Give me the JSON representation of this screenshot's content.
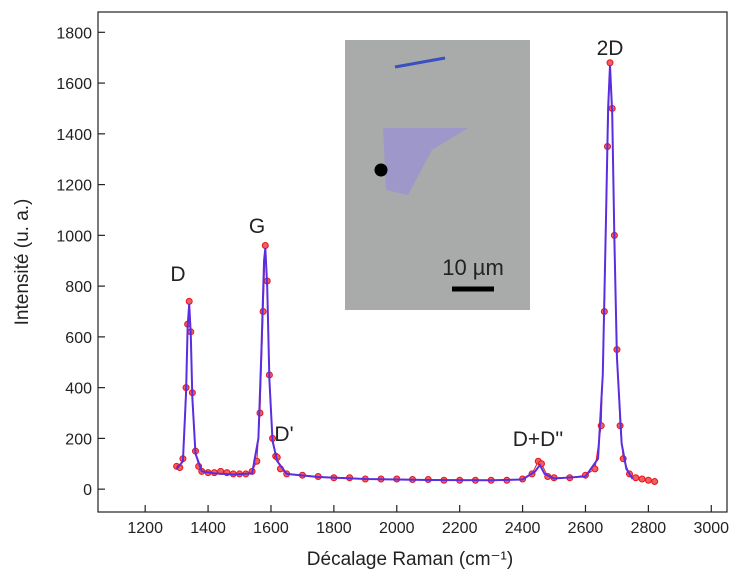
{
  "chart_data": {
    "type": "line",
    "xlabel": "Décalage  Raman (cm⁻¹)",
    "ylabel": "Intensité (u. a.)",
    "xlim": [
      1050,
      3050
    ],
    "xticks": [
      1200,
      1400,
      1600,
      1800,
      2000,
      2200,
      2400,
      2600,
      2800,
      3000
    ],
    "ylim": [
      -90,
      1880
    ],
    "yticks": [
      0,
      200,
      400,
      600,
      800,
      1000,
      1200,
      1400,
      1600,
      1800
    ],
    "annotations": [
      "D",
      "G",
      "D'",
      "D+D''",
      "2D"
    ],
    "inset_scale": "10 µm",
    "series": [
      {
        "color": "#e8141c",
        "style": "points",
        "x": [
          1300,
          1310,
          1320,
          1330,
          1335,
          1340,
          1345,
          1350,
          1360,
          1370,
          1380,
          1400,
          1420,
          1440,
          1460,
          1480,
          1500,
          1520,
          1540,
          1555,
          1565,
          1575,
          1582,
          1588,
          1595,
          1605,
          1615,
          1620,
          1630,
          1650,
          1700,
          1750,
          1800,
          1850,
          1900,
          1950,
          2000,
          2050,
          2100,
          2150,
          2200,
          2250,
          2300,
          2350,
          2400,
          2430,
          2450,
          2460,
          2480,
          2500,
          2550,
          2600,
          2630,
          2650,
          2660,
          2670,
          2678,
          2685,
          2692,
          2700,
          2710,
          2720,
          2740,
          2760,
          2780,
          2800,
          2820
        ],
        "values": [
          90,
          85,
          120,
          400,
          650,
          740,
          620,
          380,
          150,
          90,
          70,
          65,
          65,
          70,
          65,
          60,
          60,
          60,
          70,
          110,
          300,
          700,
          960,
          820,
          450,
          200,
          130,
          125,
          80,
          60,
          55,
          50,
          45,
          45,
          40,
          40,
          40,
          38,
          38,
          35,
          35,
          35,
          35,
          35,
          40,
          60,
          110,
          100,
          50,
          45,
          45,
          55,
          80,
          250,
          700,
          1350,
          1680,
          1500,
          1000,
          550,
          250,
          120,
          60,
          45,
          40,
          35,
          30
        ]
      },
      {
        "color": "#5a2ee0",
        "style": "line",
        "x": [
          1300,
          1320,
          1330,
          1335,
          1340,
          1345,
          1350,
          1360,
          1380,
          1420,
          1480,
          1540,
          1560,
          1570,
          1578,
          1582,
          1588,
          1595,
          1605,
          1620,
          1650,
          1750,
          1900,
          2100,
          2300,
          2400,
          2440,
          2455,
          2470,
          2500,
          2600,
          2640,
          2655,
          2665,
          2672,
          2678,
          2685,
          2692,
          2700,
          2715,
          2730,
          2750
        ],
        "values": [
          80,
          110,
          380,
          640,
          730,
          610,
          360,
          140,
          70,
          62,
          58,
          62,
          200,
          560,
          900,
          950,
          800,
          430,
          190,
          110,
          60,
          48,
          40,
          36,
          35,
          38,
          70,
          95,
          60,
          42,
          50,
          120,
          450,
          1050,
          1500,
          1670,
          1480,
          980,
          520,
          180,
          80,
          40
        ]
      }
    ]
  }
}
